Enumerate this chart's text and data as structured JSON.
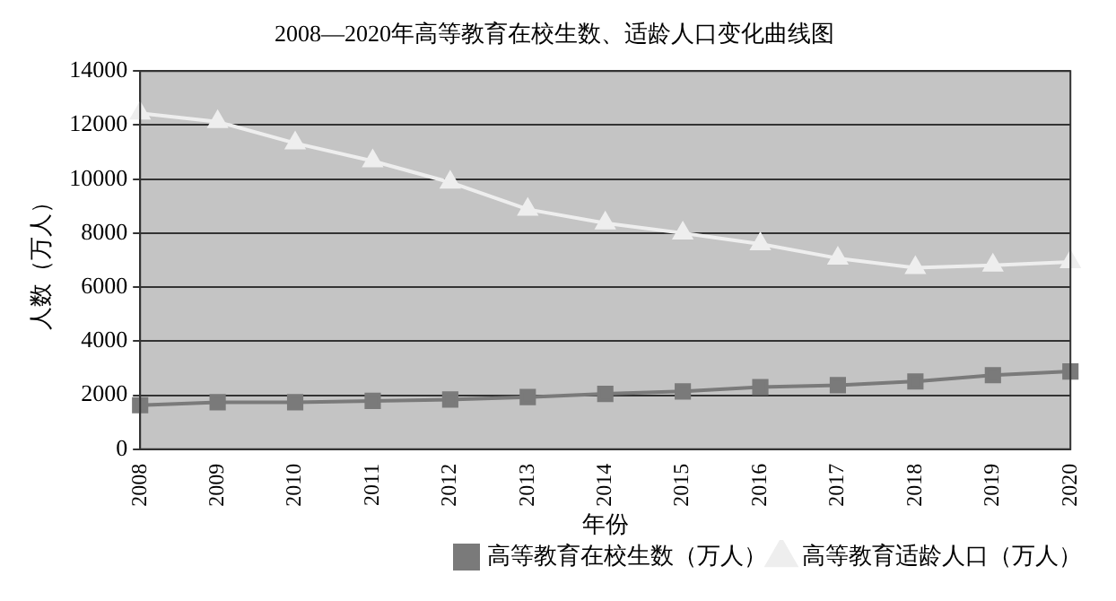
{
  "chart_data": {
    "type": "line",
    "title": "2008—2020年高等教育在校生数、适龄人口变化曲线图",
    "xlabel": "年份",
    "ylabel": "人数（万人）",
    "categories": [
      "2008",
      "2009",
      "2010",
      "2011",
      "2012",
      "2013",
      "2014",
      "2015",
      "2016",
      "2017",
      "2018",
      "2019",
      "2020"
    ],
    "series": [
      {
        "name": "高等教育在校生数（万人）",
        "color": "#7a7a7a",
        "marker": "square",
        "values": [
          1630,
          1740,
          1740,
          1790,
          1840,
          1930,
          2050,
          2140,
          2300,
          2370,
          2510,
          2740,
          2880
        ]
      },
      {
        "name": "高等教育适龄人口（万人）",
        "color": "#eeeeee",
        "marker": "triangle",
        "values": [
          12440,
          12120,
          11330,
          10670,
          9880,
          8880,
          8370,
          8000,
          7600,
          7070,
          6720,
          6810,
          6930
        ]
      }
    ],
    "ylim": [
      0,
      14000
    ],
    "yticks": [
      0,
      2000,
      4000,
      6000,
      8000,
      10000,
      12000,
      14000
    ],
    "grid": "y",
    "legend": "bottom right",
    "line_style": "solid"
  }
}
